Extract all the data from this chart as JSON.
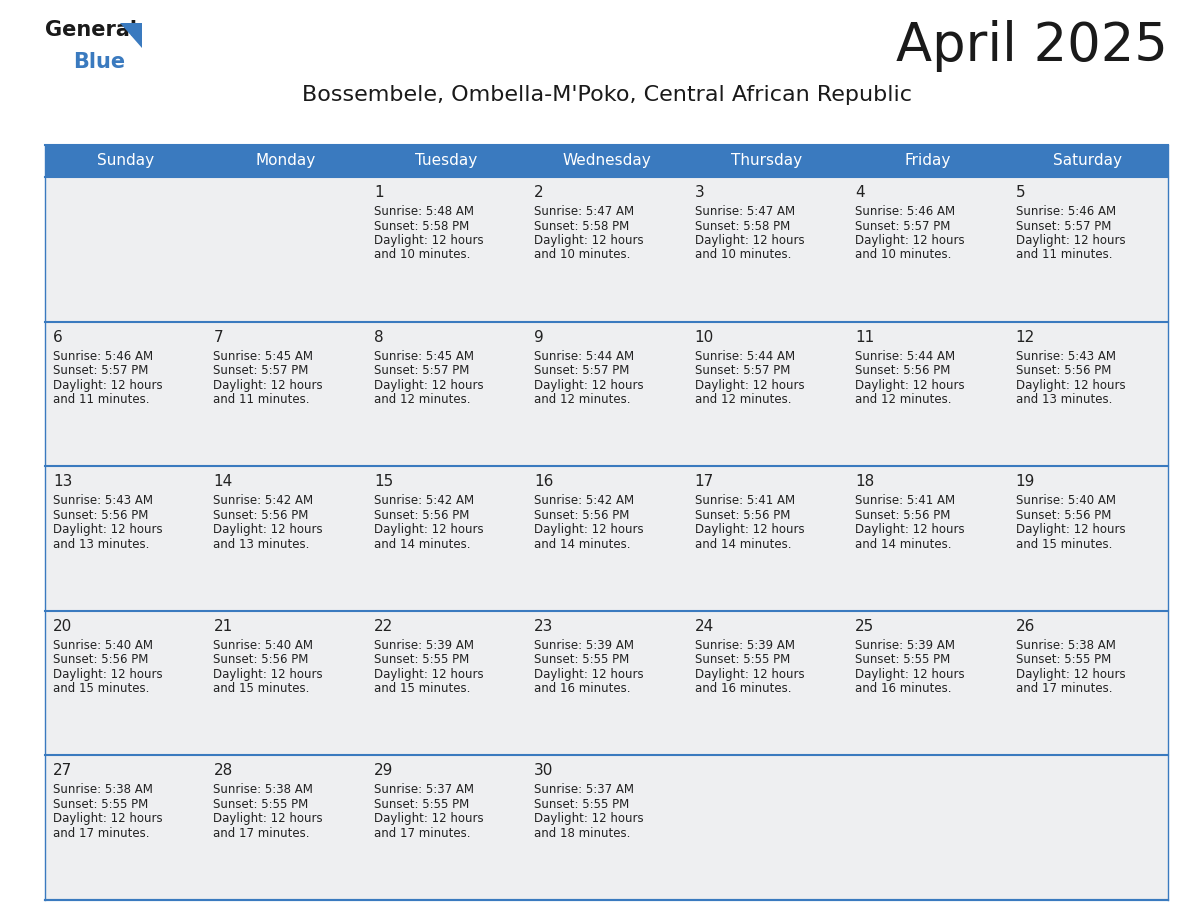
{
  "title": "April 2025",
  "subtitle": "Bossembele, Ombella-M'Poko, Central African Republic",
  "header_bg": "#3a7abf",
  "header_text": "#ffffff",
  "cell_bg": "#eeeff1",
  "row_line_color": "#3a7abf",
  "text_color": "#222222",
  "days_of_week": [
    "Sunday",
    "Monday",
    "Tuesday",
    "Wednesday",
    "Thursday",
    "Friday",
    "Saturday"
  ],
  "calendar_data": [
    [
      {
        "day": "",
        "sunrise": "",
        "sunset": "",
        "daylight": ""
      },
      {
        "day": "",
        "sunrise": "",
        "sunset": "",
        "daylight": ""
      },
      {
        "day": "1",
        "sunrise": "5:48 AM",
        "sunset": "5:58 PM",
        "daylight": "and 10 minutes."
      },
      {
        "day": "2",
        "sunrise": "5:47 AM",
        "sunset": "5:58 PM",
        "daylight": "and 10 minutes."
      },
      {
        "day": "3",
        "sunrise": "5:47 AM",
        "sunset": "5:58 PM",
        "daylight": "and 10 minutes."
      },
      {
        "day": "4",
        "sunrise": "5:46 AM",
        "sunset": "5:57 PM",
        "daylight": "and 10 minutes."
      },
      {
        "day": "5",
        "sunrise": "5:46 AM",
        "sunset": "5:57 PM",
        "daylight": "and 11 minutes."
      }
    ],
    [
      {
        "day": "6",
        "sunrise": "5:46 AM",
        "sunset": "5:57 PM",
        "daylight": "and 11 minutes."
      },
      {
        "day": "7",
        "sunrise": "5:45 AM",
        "sunset": "5:57 PM",
        "daylight": "and 11 minutes."
      },
      {
        "day": "8",
        "sunrise": "5:45 AM",
        "sunset": "5:57 PM",
        "daylight": "and 12 minutes."
      },
      {
        "day": "9",
        "sunrise": "5:44 AM",
        "sunset": "5:57 PM",
        "daylight": "and 12 minutes."
      },
      {
        "day": "10",
        "sunrise": "5:44 AM",
        "sunset": "5:57 PM",
        "daylight": "and 12 minutes."
      },
      {
        "day": "11",
        "sunrise": "5:44 AM",
        "sunset": "5:56 PM",
        "daylight": "and 12 minutes."
      },
      {
        "day": "12",
        "sunrise": "5:43 AM",
        "sunset": "5:56 PM",
        "daylight": "and 13 minutes."
      }
    ],
    [
      {
        "day": "13",
        "sunrise": "5:43 AM",
        "sunset": "5:56 PM",
        "daylight": "and 13 minutes."
      },
      {
        "day": "14",
        "sunrise": "5:42 AM",
        "sunset": "5:56 PM",
        "daylight": "and 13 minutes."
      },
      {
        "day": "15",
        "sunrise": "5:42 AM",
        "sunset": "5:56 PM",
        "daylight": "and 14 minutes."
      },
      {
        "day": "16",
        "sunrise": "5:42 AM",
        "sunset": "5:56 PM",
        "daylight": "and 14 minutes."
      },
      {
        "day": "17",
        "sunrise": "5:41 AM",
        "sunset": "5:56 PM",
        "daylight": "and 14 minutes."
      },
      {
        "day": "18",
        "sunrise": "5:41 AM",
        "sunset": "5:56 PM",
        "daylight": "and 14 minutes."
      },
      {
        "day": "19",
        "sunrise": "5:40 AM",
        "sunset": "5:56 PM",
        "daylight": "and 15 minutes."
      }
    ],
    [
      {
        "day": "20",
        "sunrise": "5:40 AM",
        "sunset": "5:56 PM",
        "daylight": "and 15 minutes."
      },
      {
        "day": "21",
        "sunrise": "5:40 AM",
        "sunset": "5:56 PM",
        "daylight": "and 15 minutes."
      },
      {
        "day": "22",
        "sunrise": "5:39 AM",
        "sunset": "5:55 PM",
        "daylight": "and 15 minutes."
      },
      {
        "day": "23",
        "sunrise": "5:39 AM",
        "sunset": "5:55 PM",
        "daylight": "and 16 minutes."
      },
      {
        "day": "24",
        "sunrise": "5:39 AM",
        "sunset": "5:55 PM",
        "daylight": "and 16 minutes."
      },
      {
        "day": "25",
        "sunrise": "5:39 AM",
        "sunset": "5:55 PM",
        "daylight": "and 16 minutes."
      },
      {
        "day": "26",
        "sunrise": "5:38 AM",
        "sunset": "5:55 PM",
        "daylight": "and 17 minutes."
      }
    ],
    [
      {
        "day": "27",
        "sunrise": "5:38 AM",
        "sunset": "5:55 PM",
        "daylight": "and 17 minutes."
      },
      {
        "day": "28",
        "sunrise": "5:38 AM",
        "sunset": "5:55 PM",
        "daylight": "and 17 minutes."
      },
      {
        "day": "29",
        "sunrise": "5:37 AM",
        "sunset": "5:55 PM",
        "daylight": "and 17 minutes."
      },
      {
        "day": "30",
        "sunrise": "5:37 AM",
        "sunset": "5:55 PM",
        "daylight": "and 18 minutes."
      },
      {
        "day": "",
        "sunrise": "",
        "sunset": "",
        "daylight": ""
      },
      {
        "day": "",
        "sunrise": "",
        "sunset": "",
        "daylight": ""
      },
      {
        "day": "",
        "sunrise": "",
        "sunset": "",
        "daylight": ""
      }
    ]
  ],
  "logo_text_general": "General",
  "logo_text_blue": "Blue",
  "logo_color_black": "#1a1a1a",
  "logo_color_blue": "#3a7abf",
  "title_fontsize": 38,
  "subtitle_fontsize": 16,
  "header_fontsize": 11,
  "day_num_fontsize": 11,
  "cell_text_fontsize": 8.5
}
